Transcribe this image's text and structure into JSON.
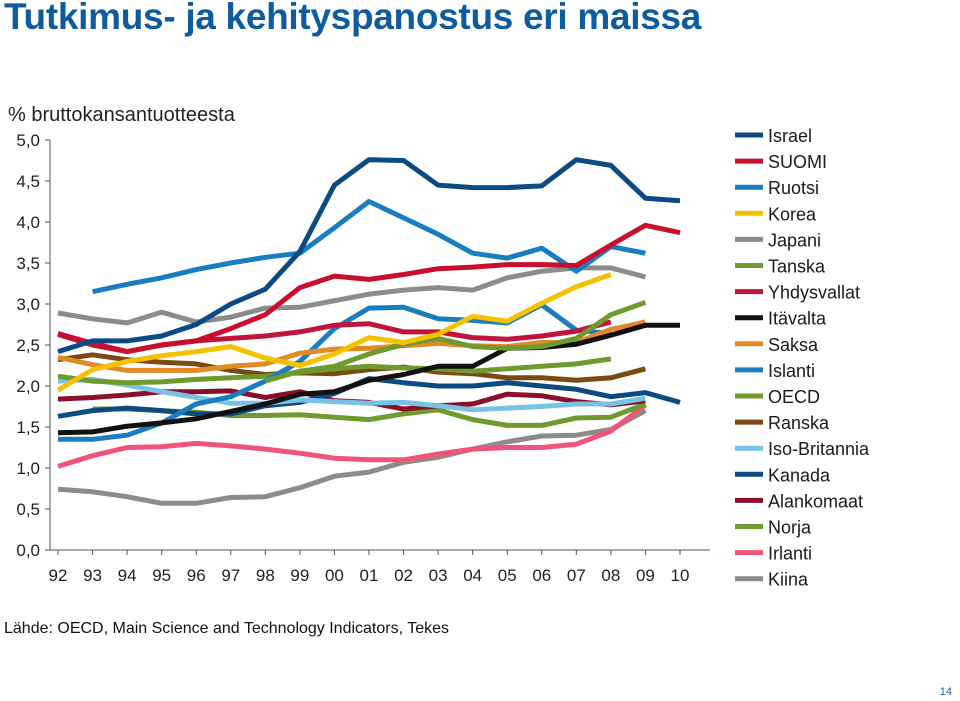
{
  "page": {
    "title": "Tutkimus- ja kehityspanostus eri maissa",
    "source": "Lähde: OECD, Main Science and Technology Indicators, Tekes",
    "page_number": "14"
  },
  "chart_data": {
    "type": "line",
    "title": "",
    "ylabel": "% bruttokansantuotteesta",
    "xlabel": "",
    "ylim": [
      0,
      5
    ],
    "yticks": [
      "0,0",
      "0,5",
      "1,0",
      "1,5",
      "2,0",
      "2,5",
      "3,0",
      "3,5",
      "4,0",
      "4,5",
      "5,0"
    ],
    "ytick_values": [
      0,
      0.5,
      1,
      1.5,
      2,
      2.5,
      3,
      3.5,
      4,
      4.5,
      5
    ],
    "categories": [
      "92",
      "93",
      "94",
      "95",
      "96",
      "97",
      "98",
      "99",
      "00",
      "01",
      "02",
      "03",
      "04",
      "05",
      "06",
      "07",
      "08",
      "09",
      "10"
    ],
    "grid": false,
    "legend": "right",
    "series": [
      {
        "name": "Israel",
        "color": "#0c4a82",
        "values": [
          2.42,
          2.55,
          2.55,
          2.61,
          2.75,
          3.0,
          3.18,
          3.64,
          4.45,
          4.76,
          4.75,
          4.45,
          4.42,
          4.42,
          4.44,
          4.76,
          4.69,
          4.29,
          4.26
        ]
      },
      {
        "name": "SUOMI",
        "color": "#c8102e",
        "values": [
          2.63,
          2.5,
          2.42,
          2.5,
          2.55,
          2.7,
          2.87,
          3.2,
          3.34,
          3.3,
          3.36,
          3.43,
          3.45,
          3.48,
          3.48,
          3.47,
          3.72,
          3.96,
          3.87
        ]
      },
      {
        "name": "Ruotsi",
        "color": "#1a7dc0",
        "values": [
          null,
          3.15,
          3.24,
          3.32,
          3.42,
          3.5,
          3.57,
          3.62,
          3.93,
          4.25,
          4.05,
          3.85,
          3.62,
          3.56,
          3.68,
          3.4,
          3.7,
          3.62,
          null
        ]
      },
      {
        "name": "Korea",
        "color": "#f5c200",
        "values": [
          1.95,
          2.2,
          2.3,
          2.37,
          2.42,
          2.48,
          2.34,
          2.25,
          2.39,
          2.59,
          2.53,
          2.63,
          2.85,
          2.79,
          3.01,
          3.21,
          3.36,
          null,
          null
        ]
      },
      {
        "name": "Japani",
        "color": "#8c8c8c",
        "values": [
          2.89,
          2.82,
          2.77,
          2.9,
          2.78,
          2.84,
          2.95,
          2.96,
          3.04,
          3.12,
          3.17,
          3.2,
          3.17,
          3.32,
          3.4,
          3.44,
          3.44,
          3.33,
          null
        ]
      },
      {
        "name": "Tanska",
        "color": "#6f9a2e",
        "values": [
          null,
          null,
          null,
          null,
          null,
          null,
          2.06,
          2.18,
          2.24,
          2.39,
          2.51,
          2.58,
          2.48,
          2.46,
          2.48,
          2.58,
          2.87,
          3.02,
          null
        ]
      },
      {
        "name": "Yhdysvallat",
        "color": "#c0143c",
        "values": [
          2.64,
          2.52,
          2.42,
          2.5,
          2.55,
          2.58,
          2.61,
          2.66,
          2.74,
          2.76,
          2.66,
          2.66,
          2.59,
          2.57,
          2.61,
          2.67,
          2.78,
          null,
          null
        ]
      },
      {
        "name": "Itävalta",
        "color": "#111111",
        "values": [
          1.43,
          1.44,
          1.51,
          1.55,
          1.6,
          1.69,
          1.78,
          1.9,
          1.93,
          2.07,
          2.14,
          2.24,
          2.24,
          2.46,
          2.47,
          2.51,
          2.62,
          2.74,
          2.74
        ]
      },
      {
        "name": "Saksa",
        "color": "#e08a28",
        "values": [
          2.35,
          2.26,
          2.19,
          2.19,
          2.19,
          2.24,
          2.27,
          2.4,
          2.45,
          2.46,
          2.49,
          2.52,
          2.49,
          2.48,
          2.53,
          2.53,
          2.69,
          2.78,
          null
        ]
      },
      {
        "name": "Islanti",
        "color": "#1a7dc0",
        "values": [
          1.35,
          1.35,
          1.4,
          1.55,
          1.78,
          1.87,
          2.06,
          2.3,
          2.7,
          2.95,
          2.96,
          2.82,
          2.8,
          2.77,
          2.99,
          2.68,
          2.64,
          null,
          null
        ]
      },
      {
        "name": "OECD",
        "color": "#6f9a2e",
        "values": [
          2.12,
          2.06,
          2.04,
          2.05,
          2.08,
          2.1,
          2.12,
          2.17,
          2.21,
          2.24,
          2.22,
          2.21,
          2.18,
          2.21,
          2.24,
          2.27,
          2.33,
          null,
          null
        ]
      },
      {
        "name": "Ranska",
        "color": "#7b4a12",
        "values": [
          2.32,
          2.38,
          2.32,
          2.29,
          2.27,
          2.19,
          2.14,
          2.16,
          2.15,
          2.2,
          2.23,
          2.17,
          2.15,
          2.1,
          2.1,
          2.07,
          2.1,
          2.21,
          null
        ]
      },
      {
        "name": "Iso-Britannia",
        "color": "#78c2e8",
        "values": [
          2.06,
          2.08,
          2.01,
          1.93,
          1.86,
          1.79,
          1.79,
          1.83,
          1.81,
          1.79,
          1.8,
          1.76,
          1.71,
          1.73,
          1.75,
          1.78,
          1.78,
          1.85,
          null
        ]
      },
      {
        "name": "Kanada",
        "color": "#0c4a82",
        "values": [
          1.63,
          1.7,
          1.73,
          1.7,
          1.66,
          1.66,
          1.76,
          1.8,
          1.91,
          2.09,
          2.04,
          2.0,
          2.0,
          2.04,
          2.0,
          1.96,
          1.87,
          1.92,
          1.8
        ]
      },
      {
        "name": "Alankomaat",
        "color": "#8b0f2a",
        "values": [
          1.84,
          1.86,
          1.89,
          1.93,
          1.93,
          1.94,
          1.86,
          1.93,
          1.82,
          1.8,
          1.72,
          1.76,
          1.78,
          1.9,
          1.88,
          1.81,
          1.77,
          1.82,
          null
        ]
      },
      {
        "name": "Norja",
        "color": "#6f9a2e",
        "values": [
          null,
          1.72,
          1.72,
          1.7,
          1.68,
          1.64,
          1.64,
          1.65,
          1.62,
          1.59,
          1.66,
          1.71,
          1.59,
          1.52,
          1.52,
          1.61,
          1.62,
          1.78,
          null
        ]
      },
      {
        "name": "Irlanti",
        "color": "#f0547a",
        "values": [
          1.02,
          1.15,
          1.25,
          1.26,
          1.3,
          1.27,
          1.23,
          1.18,
          1.12,
          1.1,
          1.1,
          1.17,
          1.23,
          1.25,
          1.25,
          1.29,
          1.45,
          1.77,
          null
        ]
      },
      {
        "name": "Kiina",
        "color": "#8c8c8c",
        "values": [
          0.74,
          0.71,
          0.65,
          0.57,
          0.57,
          0.64,
          0.65,
          0.76,
          0.9,
          0.95,
          1.07,
          1.13,
          1.23,
          1.32,
          1.39,
          1.4,
          1.47,
          1.7,
          null
        ]
      }
    ]
  }
}
